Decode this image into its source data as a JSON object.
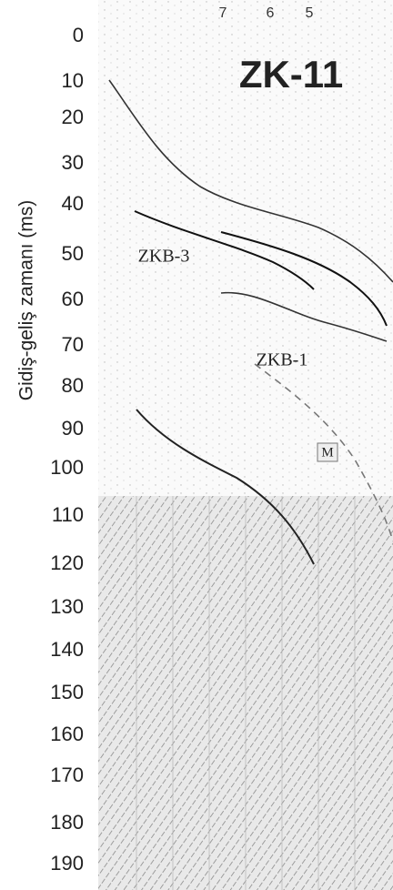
{
  "title": "ZK-11",
  "axis": {
    "label": "Gidiş-geliş zamanı (ms)",
    "ticks": [
      "0",
      "10",
      "20",
      "30",
      "40",
      "50",
      "60",
      "70",
      "80",
      "90",
      "100",
      "110",
      "120",
      "130",
      "140",
      "150",
      "160",
      "170",
      "180",
      "190"
    ]
  },
  "trace_labels": [
    "7",
    "6",
    "5"
  ],
  "annotations": {
    "upper_unit": "ZKB-3",
    "lower_unit": "ZKB-1",
    "marker": "M"
  }
}
